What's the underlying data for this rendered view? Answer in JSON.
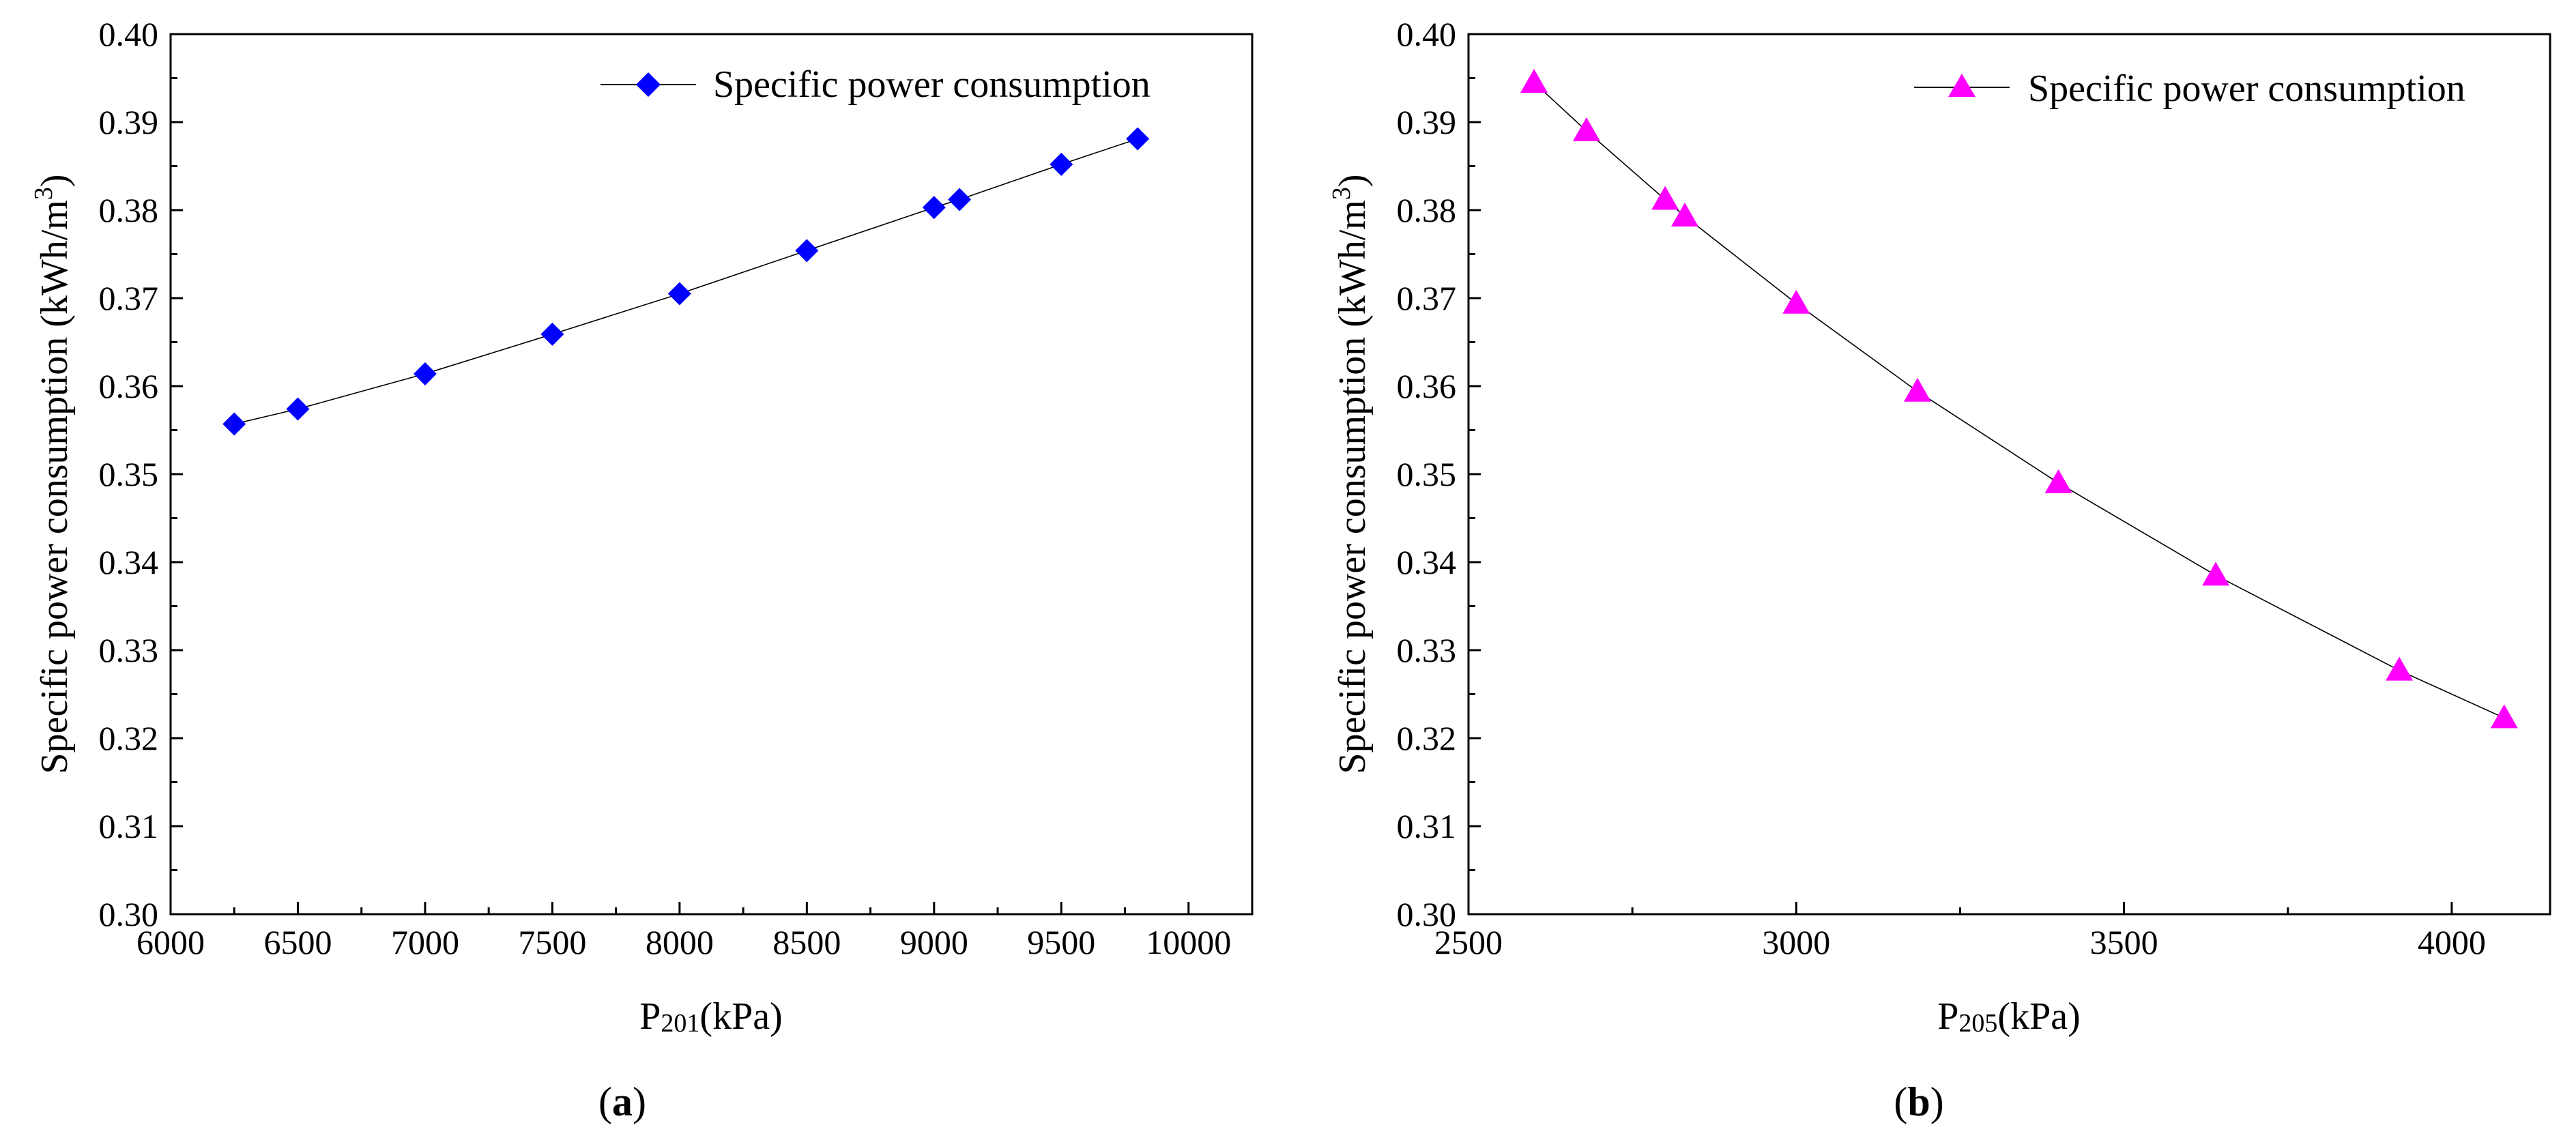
{
  "chart_data": [
    {
      "type": "line",
      "panel_label": {
        "open": "(",
        "letter": "a",
        "close": ")"
      },
      "xlabel": {
        "main": "P",
        "sub": "201",
        "unit": "(kPa)"
      },
      "ylabel": {
        "main": "Specific power consumption (kWh/m",
        "sup": "3",
        "end": ")"
      },
      "xlim": [
        6000,
        10250
      ],
      "ylim": [
        0.3,
        0.4
      ],
      "xticks": [
        "6000",
        "6500",
        "7000",
        "7500",
        "8000",
        "8500",
        "9000",
        "9500",
        "10000"
      ],
      "yticks": [
        "0.30",
        "0.31",
        "0.32",
        "0.33",
        "0.34",
        "0.35",
        "0.36",
        "0.37",
        "0.38",
        "0.39",
        "0.40"
      ],
      "legend": {
        "position": "top-right"
      },
      "series": [
        {
          "name": "Specific power consumption",
          "marker": "diamond",
          "color": "#0000ff",
          "x": [
            6250,
            6500,
            7000,
            7500,
            8000,
            8500,
            9000,
            9100,
            9500,
            9800
          ],
          "y": [
            0.3557,
            0.3574,
            0.3614,
            0.3659,
            0.3705,
            0.3754,
            0.3803,
            0.3812,
            0.3852,
            0.3881
          ]
        }
      ]
    },
    {
      "type": "line",
      "panel_label": {
        "open": "(",
        "letter": "b",
        "close": ")"
      },
      "xlabel": {
        "main": "P",
        "sub": "205",
        "unit": "(kPa)"
      },
      "ylabel": {
        "main": "Specific power consumption (kWh/m",
        "sup": "3",
        "end": ")"
      },
      "xlim": [
        2500,
        4150
      ],
      "ylim": [
        0.3,
        0.4
      ],
      "xticks": [
        "2500",
        "3000",
        "3500",
        "4000"
      ],
      "yticks": [
        "0.30",
        "0.31",
        "0.32",
        "0.33",
        "0.34",
        "0.35",
        "0.36",
        "0.37",
        "0.38",
        "0.39",
        "0.40"
      ],
      "legend": {
        "position": "top-right"
      },
      "series": [
        {
          "name": "Specific power consumption",
          "marker": "triangle",
          "color": "#ff00ff",
          "x": [
            2600,
            2680,
            2800,
            2830,
            3000,
            3185,
            3400,
            3640,
            3920,
            4080
          ],
          "y": [
            0.3945,
            0.389,
            0.3812,
            0.3793,
            0.3694,
            0.3594,
            0.349,
            0.3385,
            0.3277,
            0.3223
          ]
        }
      ]
    }
  ]
}
